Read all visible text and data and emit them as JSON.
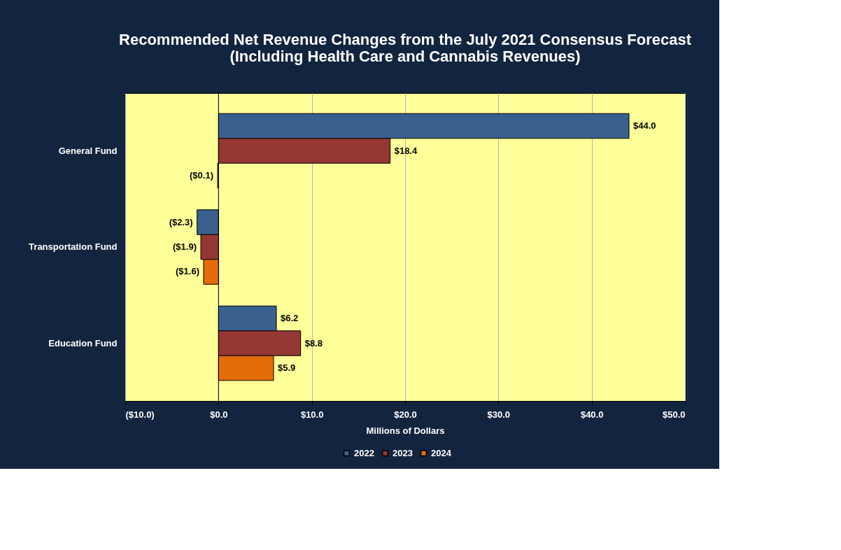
{
  "chart_data": {
    "type": "bar",
    "orientation": "horizontal",
    "title": "Recommended Net Revenue Changes from the July 2021 Consensus Forecast\n(Including Health Care and Cannabis Revenues)",
    "xlabel": "Millions of Dollars",
    "categories": [
      "General Fund",
      "Transportation Fund",
      "Education Fund"
    ],
    "series": [
      {
        "name": "2022",
        "color": "#3a6090",
        "values": [
          44.0,
          -2.3,
          6.2
        ],
        "value_labels": [
          "$44.0",
          "($2.3)",
          "$6.2"
        ]
      },
      {
        "name": "2023",
        "color": "#953735",
        "values": [
          18.4,
          -1.9,
          8.8
        ],
        "value_labels": [
          "$18.4",
          "($1.9)",
          "$8.8"
        ]
      },
      {
        "name": "2024",
        "color": "#e46c0a",
        "values": [
          -0.1,
          -1.6,
          5.9
        ],
        "value_labels": [
          "($0.1)",
          "($1.6)",
          "$5.9"
        ]
      }
    ],
    "xlim": [
      -10,
      50
    ],
    "xticks": [
      {
        "value": -10,
        "label": "($10.0)"
      },
      {
        "value": 0,
        "label": "$0.0"
      },
      {
        "value": 10,
        "label": "$10.0"
      },
      {
        "value": 20,
        "label": "$20.0"
      },
      {
        "value": 30,
        "label": "$30.0"
      },
      {
        "value": 40,
        "label": "$40.0"
      },
      {
        "value": 50,
        "label": "$50.0"
      }
    ],
    "grid": "x",
    "legend": "bottom"
  }
}
